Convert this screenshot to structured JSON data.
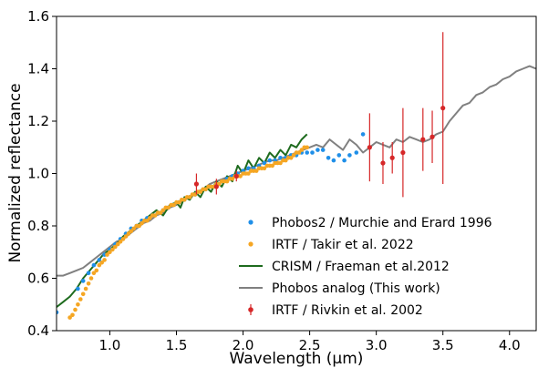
{
  "chart_data": {
    "type": "scatter",
    "xlabel": "Wavelength (μm)",
    "ylabel": "Normalized reflectance",
    "xlim": [
      0.6,
      4.2
    ],
    "ylim": [
      0.4,
      1.6
    ],
    "xticks": [
      1.0,
      1.5,
      2.0,
      2.5,
      3.0,
      3.5,
      4.0
    ],
    "xtick_labels": [
      "1.0",
      "1.5",
      "2.0",
      "2.5",
      "3.0",
      "3.5",
      "4.0"
    ],
    "yticks": [
      0.4,
      0.6,
      0.8,
      1.0,
      1.2,
      1.4,
      1.6
    ],
    "ytick_labels": [
      "0.4",
      "0.6",
      "0.8",
      "1.0",
      "1.2",
      "1.4",
      "1.6"
    ],
    "grid": false,
    "legend_position": "lower-right",
    "series": [
      {
        "name": "Phobos2 / Murchie and Erard 1996",
        "kind": "scatter",
        "color": "#1f8fe8",
        "points": [
          [
            0.6,
            0.47
          ],
          [
            0.76,
            0.56
          ],
          [
            0.8,
            0.59
          ],
          [
            0.84,
            0.62
          ],
          [
            0.88,
            0.65
          ],
          [
            0.92,
            0.67
          ],
          [
            0.96,
            0.69
          ],
          [
            1.0,
            0.71
          ],
          [
            1.04,
            0.73
          ],
          [
            1.08,
            0.75
          ],
          [
            1.12,
            0.77
          ],
          [
            1.16,
            0.79
          ],
          [
            1.2,
            0.8
          ],
          [
            1.24,
            0.82
          ],
          [
            1.28,
            0.83
          ],
          [
            1.32,
            0.84
          ],
          [
            1.36,
            0.85
          ],
          [
            1.4,
            0.86
          ],
          [
            1.44,
            0.87
          ],
          [
            1.48,
            0.88
          ],
          [
            1.52,
            0.89
          ],
          [
            1.56,
            0.9
          ],
          [
            1.6,
            0.91
          ],
          [
            1.64,
            0.92
          ],
          [
            1.68,
            0.93
          ],
          [
            1.72,
            0.94
          ],
          [
            1.76,
            0.95
          ],
          [
            1.8,
            0.96
          ],
          [
            1.84,
            0.97
          ],
          [
            1.88,
            0.98
          ],
          [
            1.92,
            0.99
          ],
          [
            1.96,
            1.0
          ],
          [
            2.0,
            1.01
          ],
          [
            2.04,
            1.02
          ],
          [
            2.08,
            1.02
          ],
          [
            2.12,
            1.03
          ],
          [
            2.16,
            1.04
          ],
          [
            2.2,
            1.05
          ],
          [
            2.24,
            1.05
          ],
          [
            2.28,
            1.06
          ],
          [
            2.32,
            1.06
          ],
          [
            2.36,
            1.07
          ],
          [
            2.4,
            1.07
          ],
          [
            2.44,
            1.08
          ],
          [
            2.48,
            1.08
          ],
          [
            2.52,
            1.08
          ],
          [
            2.56,
            1.09
          ],
          [
            2.6,
            1.09
          ],
          [
            2.64,
            1.06
          ],
          [
            2.68,
            1.05
          ],
          [
            2.72,
            1.07
          ],
          [
            2.76,
            1.05
          ],
          [
            2.8,
            1.07
          ],
          [
            2.85,
            1.08
          ],
          [
            2.9,
            1.15
          ]
        ]
      },
      {
        "name": "IRTF / Takir et al. 2022",
        "kind": "scatter",
        "color": "#f5a623",
        "points": [
          [
            0.7,
            0.45
          ],
          [
            0.72,
            0.46
          ],
          [
            0.74,
            0.48
          ],
          [
            0.76,
            0.5
          ],
          [
            0.78,
            0.52
          ],
          [
            0.8,
            0.54
          ],
          [
            0.82,
            0.56
          ],
          [
            0.84,
            0.58
          ],
          [
            0.86,
            0.6
          ],
          [
            0.88,
            0.62
          ],
          [
            0.9,
            0.63
          ],
          [
            0.92,
            0.65
          ],
          [
            0.94,
            0.66
          ],
          [
            0.96,
            0.67
          ],
          [
            0.98,
            0.69
          ],
          [
            1.0,
            0.7
          ],
          [
            1.02,
            0.71
          ],
          [
            1.04,
            0.72
          ],
          [
            1.06,
            0.73
          ],
          [
            1.08,
            0.74
          ],
          [
            1.1,
            0.75
          ],
          [
            1.12,
            0.76
          ],
          [
            1.14,
            0.77
          ],
          [
            1.16,
            0.78
          ],
          [
            1.18,
            0.79
          ],
          [
            1.2,
            0.8
          ],
          [
            1.22,
            0.8
          ],
          [
            1.24,
            0.81
          ],
          [
            1.26,
            0.82
          ],
          [
            1.28,
            0.82
          ],
          [
            1.3,
            0.83
          ],
          [
            1.32,
            0.84
          ],
          [
            1.34,
            0.84
          ],
          [
            1.36,
            0.85
          ],
          [
            1.38,
            0.85
          ],
          [
            1.4,
            0.86
          ],
          [
            1.42,
            0.87
          ],
          [
            1.44,
            0.87
          ],
          [
            1.46,
            0.88
          ],
          [
            1.48,
            0.88
          ],
          [
            1.5,
            0.89
          ],
          [
            1.52,
            0.89
          ],
          [
            1.54,
            0.9
          ],
          [
            1.56,
            0.9
          ],
          [
            1.58,
            0.91
          ],
          [
            1.6,
            0.91
          ],
          [
            1.62,
            0.92
          ],
          [
            1.64,
            0.92
          ],
          [
            1.66,
            0.93
          ],
          [
            1.68,
            0.93
          ],
          [
            1.7,
            0.94
          ],
          [
            1.72,
            0.94
          ],
          [
            1.74,
            0.95
          ],
          [
            1.76,
            0.95
          ],
          [
            1.78,
            0.95
          ],
          [
            1.8,
            0.96
          ],
          [
            1.82,
            0.96
          ],
          [
            1.84,
            0.97
          ],
          [
            1.86,
            0.97
          ],
          [
            1.88,
            0.97
          ],
          [
            1.9,
            0.98
          ],
          [
            1.92,
            0.98
          ],
          [
            1.94,
            0.99
          ],
          [
            1.96,
            0.99
          ],
          [
            1.98,
            0.99
          ],
          [
            2.0,
            1.0
          ],
          [
            2.02,
            1.0
          ],
          [
            2.04,
            1.0
          ],
          [
            2.06,
            1.01
          ],
          [
            2.08,
            1.01
          ],
          [
            2.1,
            1.01
          ],
          [
            2.12,
            1.02
          ],
          [
            2.14,
            1.02
          ],
          [
            2.16,
            1.02
          ],
          [
            2.18,
            1.03
          ],
          [
            2.2,
            1.03
          ],
          [
            2.22,
            1.03
          ],
          [
            2.24,
            1.04
          ],
          [
            2.26,
            1.04
          ],
          [
            2.28,
            1.04
          ],
          [
            2.3,
            1.05
          ],
          [
            2.32,
            1.05
          ],
          [
            2.34,
            1.06
          ],
          [
            2.36,
            1.06
          ],
          [
            2.38,
            1.07
          ],
          [
            2.4,
            1.08
          ],
          [
            2.42,
            1.08
          ],
          [
            2.44,
            1.09
          ],
          [
            2.46,
            1.1
          ],
          [
            2.48,
            1.1
          ]
        ]
      },
      {
        "name": "CRISM / Fraeman et al.2012",
        "kind": "line",
        "color": "#1e6b1e",
        "points": [
          [
            0.6,
            0.49
          ],
          [
            0.65,
            0.51
          ],
          [
            0.7,
            0.53
          ],
          [
            0.75,
            0.56
          ],
          [
            0.8,
            0.6
          ],
          [
            0.85,
            0.63
          ],
          [
            0.9,
            0.66
          ],
          [
            0.95,
            0.69
          ],
          [
            1.0,
            0.71
          ],
          [
            1.05,
            0.73
          ],
          [
            1.1,
            0.76
          ],
          [
            1.15,
            0.78
          ],
          [
            1.2,
            0.8
          ],
          [
            1.25,
            0.82
          ],
          [
            1.3,
            0.84
          ],
          [
            1.35,
            0.86
          ],
          [
            1.4,
            0.84
          ],
          [
            1.45,
            0.88
          ],
          [
            1.5,
            0.89
          ],
          [
            1.53,
            0.87
          ],
          [
            1.56,
            0.91
          ],
          [
            1.6,
            0.9
          ],
          [
            1.64,
            0.93
          ],
          [
            1.68,
            0.91
          ],
          [
            1.72,
            0.95
          ],
          [
            1.76,
            0.93
          ],
          [
            1.8,
            0.97
          ],
          [
            1.84,
            0.95
          ],
          [
            1.88,
            0.99
          ],
          [
            1.92,
            0.97
          ],
          [
            1.96,
            1.03
          ],
          [
            2.0,
            1.0
          ],
          [
            2.04,
            1.05
          ],
          [
            2.08,
            1.02
          ],
          [
            2.12,
            1.06
          ],
          [
            2.16,
            1.04
          ],
          [
            2.2,
            1.08
          ],
          [
            2.24,
            1.06
          ],
          [
            2.28,
            1.09
          ],
          [
            2.32,
            1.07
          ],
          [
            2.36,
            1.11
          ],
          [
            2.4,
            1.1
          ],
          [
            2.44,
            1.13
          ],
          [
            2.48,
            1.15
          ]
        ]
      },
      {
        "name": "Phobos analog (This work)",
        "kind": "line",
        "color": "#808080",
        "points": [
          [
            0.6,
            0.61
          ],
          [
            0.65,
            0.61
          ],
          [
            0.7,
            0.62
          ],
          [
            0.75,
            0.63
          ],
          [
            0.8,
            0.64
          ],
          [
            0.85,
            0.66
          ],
          [
            0.9,
            0.68
          ],
          [
            0.95,
            0.7
          ],
          [
            1.0,
            0.72
          ],
          [
            1.05,
            0.74
          ],
          [
            1.1,
            0.75
          ],
          [
            1.15,
            0.77
          ],
          [
            1.2,
            0.79
          ],
          [
            1.25,
            0.81
          ],
          [
            1.3,
            0.82
          ],
          [
            1.35,
            0.84
          ],
          [
            1.4,
            0.85
          ],
          [
            1.45,
            0.87
          ],
          [
            1.5,
            0.88
          ],
          [
            1.55,
            0.9
          ],
          [
            1.6,
            0.91
          ],
          [
            1.65,
            0.93
          ],
          [
            1.7,
            0.94
          ],
          [
            1.75,
            0.96
          ],
          [
            1.8,
            0.97
          ],
          [
            1.85,
            0.98
          ],
          [
            1.9,
            0.99
          ],
          [
            1.95,
            1.0
          ],
          [
            2.0,
            1.01
          ],
          [
            2.05,
            1.02
          ],
          [
            2.1,
            1.03
          ],
          [
            2.15,
            1.04
          ],
          [
            2.2,
            1.05
          ],
          [
            2.25,
            1.05
          ],
          [
            2.3,
            1.06
          ],
          [
            2.35,
            1.07
          ],
          [
            2.4,
            1.08
          ],
          [
            2.45,
            1.09
          ],
          [
            2.5,
            1.1
          ],
          [
            2.55,
            1.11
          ],
          [
            2.6,
            1.1
          ],
          [
            2.65,
            1.13
          ],
          [
            2.7,
            1.11
          ],
          [
            2.75,
            1.09
          ],
          [
            2.8,
            1.13
          ],
          [
            2.85,
            1.11
          ],
          [
            2.9,
            1.08
          ],
          [
            2.95,
            1.1
          ],
          [
            3.0,
            1.12
          ],
          [
            3.05,
            1.11
          ],
          [
            3.1,
            1.1
          ],
          [
            3.15,
            1.13
          ],
          [
            3.2,
            1.12
          ],
          [
            3.25,
            1.14
          ],
          [
            3.3,
            1.13
          ],
          [
            3.35,
            1.12
          ],
          [
            3.4,
            1.13
          ],
          [
            3.45,
            1.15
          ],
          [
            3.5,
            1.16
          ],
          [
            3.55,
            1.2
          ],
          [
            3.6,
            1.23
          ],
          [
            3.65,
            1.26
          ],
          [
            3.7,
            1.27
          ],
          [
            3.75,
            1.3
          ],
          [
            3.8,
            1.31
          ],
          [
            3.85,
            1.33
          ],
          [
            3.9,
            1.34
          ],
          [
            3.95,
            1.36
          ],
          [
            4.0,
            1.37
          ],
          [
            4.05,
            1.39
          ],
          [
            4.1,
            1.4
          ],
          [
            4.15,
            1.41
          ],
          [
            4.2,
            1.4
          ]
        ]
      },
      {
        "name": "IRTF / Rivkin et al. 2002",
        "kind": "errorbar",
        "color": "#d62728",
        "points": [
          [
            1.65,
            0.96,
            0.04
          ],
          [
            1.8,
            0.95,
            0.03
          ],
          [
            1.95,
            0.99,
            0.02
          ],
          [
            2.95,
            1.1,
            0.13
          ],
          [
            3.05,
            1.04,
            0.08
          ],
          [
            3.12,
            1.06,
            0.06
          ],
          [
            3.2,
            1.08,
            0.17
          ],
          [
            3.35,
            1.13,
            0.12
          ],
          [
            3.42,
            1.14,
            0.1
          ],
          [
            3.5,
            1.25,
            0.29
          ]
        ]
      }
    ]
  }
}
